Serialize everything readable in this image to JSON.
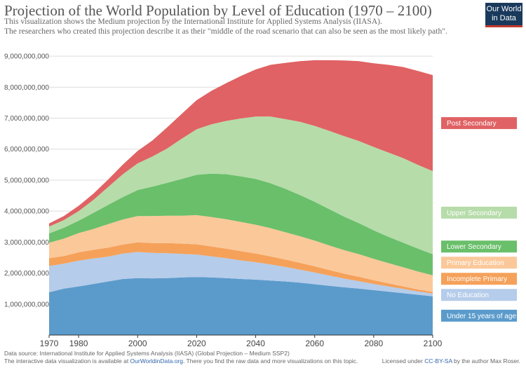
{
  "header": {
    "title": "Projection of the World Population by Level of Education (1970 – 2100)",
    "subtitle_1": "This visualization shows the Medium projection by the International Institute for Applied Systems Analysis (IIASA).",
    "subtitle_2": "The researchers who created this projection describe it as their \"middle of the road scenario that can also be seen as the most likely path\"."
  },
  "logo": {
    "line1": "Our World",
    "line2": "in Data",
    "bg_color": "#1a3a5c",
    "accent_color": "#c0392b"
  },
  "footer": {
    "source": "Data source: International Institute for Applied Systems Analysis (IIASA) (Global Projection – Medium SSP2)",
    "available_prefix": "The interactive data visualization is available at ",
    "available_link": "OurWorldinData.org",
    "available_suffix": ". There you find the raw data and more visualizations on this topic.",
    "license_prefix": "Licensed under ",
    "license_link": "CC-BY-SA",
    "license_suffix": " by the author Max Roser."
  },
  "chart_data": {
    "type": "area",
    "stacked": true,
    "title": "Projection of the World Population by Level of Education (1970 – 2100)",
    "x": [
      1970,
      1975,
      1980,
      1985,
      1990,
      1995,
      2000,
      2005,
      2010,
      2015,
      2020,
      2025,
      2030,
      2035,
      2040,
      2045,
      2050,
      2055,
      2060,
      2065,
      2070,
      2075,
      2080,
      2085,
      2090,
      2095,
      2100
    ],
    "xlim": [
      1970,
      2100
    ],
    "x_ticks": [
      "1970",
      "1980",
      "2000",
      "2020",
      "2040",
      "2060",
      "2080",
      "2100"
    ],
    "x_tick_values": [
      1970,
      1980,
      2000,
      2020,
      2040,
      2060,
      2080,
      2100
    ],
    "ylim": [
      0,
      9500000000
    ],
    "y_ticks": [
      "1,000,000,000",
      "2,000,000,000",
      "3,000,000,000",
      "4,000,000,000",
      "5,000,000,000",
      "6,000,000,000",
      "7,000,000,000",
      "8,000,000,000",
      "9,000,000,000"
    ],
    "y_tick_values": [
      1000000000,
      2000000000,
      3000000000,
      4000000000,
      5000000000,
      6000000000,
      7000000000,
      8000000000,
      9000000000
    ],
    "grid": true,
    "legend_placement": "right",
    "series": [
      {
        "name": "Under 15 years of age",
        "color": "#5b9bcb",
        "values": [
          1380000000,
          1500000000,
          1570000000,
          1650000000,
          1730000000,
          1810000000,
          1840000000,
          1830000000,
          1840000000,
          1860000000,
          1870000000,
          1860000000,
          1840000000,
          1810000000,
          1790000000,
          1760000000,
          1730000000,
          1690000000,
          1640000000,
          1590000000,
          1540000000,
          1500000000,
          1450000000,
          1400000000,
          1350000000,
          1300000000,
          1250000000
        ]
      },
      {
        "name": "No Education",
        "color": "#b5ccea",
        "values": [
          850000000,
          800000000,
          830000000,
          820000000,
          800000000,
          820000000,
          840000000,
          820000000,
          800000000,
          760000000,
          730000000,
          680000000,
          640000000,
          600000000,
          560000000,
          520000000,
          470000000,
          420000000,
          380000000,
          330000000,
          280000000,
          240000000,
          200000000,
          170000000,
          140000000,
          110000000,
          90000000
        ]
      },
      {
        "name": "Incomplete Primary",
        "color": "#f5a15a",
        "values": [
          250000000,
          250000000,
          270000000,
          280000000,
          290000000,
          290000000,
          310000000,
          320000000,
          330000000,
          330000000,
          330000000,
          320000000,
          310000000,
          300000000,
          280000000,
          260000000,
          240000000,
          220000000,
          200000000,
          180000000,
          160000000,
          140000000,
          120000000,
          100000000,
          80000000,
          60000000,
          50000000
        ]
      },
      {
        "name": "Primary Education",
        "color": "#fbc89a",
        "values": [
          500000000,
          560000000,
          620000000,
          670000000,
          760000000,
          810000000,
          850000000,
          870000000,
          880000000,
          900000000,
          940000000,
          950000000,
          950000000,
          940000000,
          930000000,
          910000000,
          880000000,
          860000000,
          830000000,
          790000000,
          760000000,
          730000000,
          690000000,
          650000000,
          620000000,
          580000000,
          540000000
        ]
      },
      {
        "name": "Lower Secondary",
        "color": "#6abf6a",
        "values": [
          300000000,
          350000000,
          400000000,
          520000000,
          620000000,
          720000000,
          840000000,
          950000000,
          1060000000,
          1190000000,
          1300000000,
          1400000000,
          1450000000,
          1470000000,
          1480000000,
          1450000000,
          1400000000,
          1330000000,
          1250000000,
          1170000000,
          1080000000,
          1000000000,
          920000000,
          850000000,
          790000000,
          740000000,
          680000000
        ]
      },
      {
        "name": "Upper Secondary",
        "color": "#b6dcaa",
        "values": [
          220000000,
          250000000,
          310000000,
          420000000,
          580000000,
          740000000,
          860000000,
          970000000,
          1110000000,
          1300000000,
          1470000000,
          1590000000,
          1720000000,
          1870000000,
          2010000000,
          2150000000,
          2250000000,
          2360000000,
          2450000000,
          2530000000,
          2600000000,
          2650000000,
          2690000000,
          2720000000,
          2730000000,
          2700000000,
          2680000000
        ]
      },
      {
        "name": "Post Secondary",
        "color": "#e06264",
        "values": [
          100000000,
          130000000,
          170000000,
          200000000,
          240000000,
          310000000,
          400000000,
          520000000,
          680000000,
          800000000,
          940000000,
          1080000000,
          1220000000,
          1370000000,
          1520000000,
          1670000000,
          1810000000,
          1960000000,
          2120000000,
          2280000000,
          2440000000,
          2580000000,
          2700000000,
          2830000000,
          2940000000,
          3030000000,
          3100000000
        ]
      }
    ]
  }
}
